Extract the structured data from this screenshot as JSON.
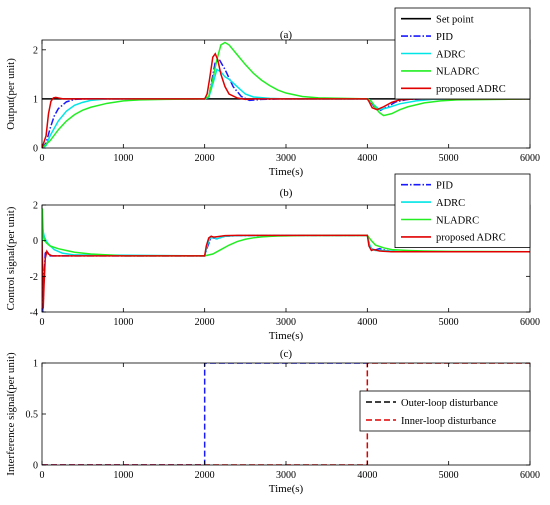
{
  "chart_data": [
    {
      "type": "line",
      "title": "(a)",
      "xlabel": "Time(s)",
      "ylabel": "Output(per unit)",
      "xlim": [
        0,
        6000
      ],
      "ylim": [
        0,
        2.2
      ],
      "xticks": [
        0,
        1000,
        2000,
        3000,
        4000,
        5000,
        6000
      ],
      "yticks": [
        0,
        1,
        2
      ],
      "legend_position": "top-right",
      "series": [
        {
          "name": "Set point",
          "color": "#000000",
          "dash": "solid",
          "x": [
            0,
            6000
          ],
          "y": [
            1,
            1
          ]
        },
        {
          "name": "PID",
          "color": "#1a1aff",
          "dash": "dashdot",
          "x": [
            0,
            50,
            100,
            150,
            200,
            300,
            400,
            500,
            2000,
            2050,
            2080,
            2130,
            2180,
            2250,
            2350,
            2450,
            2550,
            2700,
            2900,
            4000,
            4030,
            4080,
            4150,
            4250,
            4350,
            4500,
            4700,
            6000
          ],
          "y": [
            0,
            0.1,
            0.4,
            0.65,
            0.8,
            0.94,
            0.99,
            1.0,
            1.0,
            1.03,
            1.3,
            1.75,
            1.8,
            1.6,
            1.25,
            1.05,
            0.97,
            0.99,
            1.0,
            1.0,
            0.97,
            0.85,
            0.76,
            0.84,
            0.94,
            0.99,
            1.0,
            1.0
          ]
        },
        {
          "name": "ADRC",
          "color": "#00e5e5",
          "dash": "solid",
          "x": [
            0,
            50,
            100,
            200,
            300,
            400,
            500,
            600,
            800,
            2000,
            2050,
            2100,
            2150,
            2200,
            2250,
            2300,
            2400,
            2500,
            2600,
            2800,
            3000,
            4000,
            4030,
            4080,
            4150,
            4250,
            4400,
            4600,
            4800,
            6000
          ],
          "y": [
            0,
            0.05,
            0.25,
            0.55,
            0.75,
            0.87,
            0.93,
            0.97,
            1.0,
            1.0,
            1.03,
            1.3,
            1.6,
            1.55,
            1.45,
            1.4,
            1.25,
            1.1,
            1.04,
            1.01,
            1.0,
            1.0,
            0.98,
            0.88,
            0.78,
            0.82,
            0.9,
            0.96,
            0.99,
            1.0
          ]
        },
        {
          "name": "NLADRC",
          "color": "#22ee22",
          "dash": "solid",
          "x": [
            0,
            100,
            200,
            300,
            400,
            500,
            600,
            800,
            1000,
            1200,
            1500,
            2000,
            2050,
            2100,
            2150,
            2200,
            2250,
            2300,
            2400,
            2500,
            2600,
            2700,
            2800,
            2900,
            3000,
            3200,
            3400,
            4000,
            4050,
            4100,
            4150,
            4200,
            4300,
            4400,
            4500,
            4700,
            4900,
            5100,
            6000
          ],
          "y": [
            0,
            0.15,
            0.37,
            0.55,
            0.68,
            0.77,
            0.83,
            0.91,
            0.96,
            0.98,
            0.99,
            1.0,
            1.05,
            1.4,
            1.8,
            2.1,
            2.15,
            2.1,
            1.9,
            1.7,
            1.52,
            1.38,
            1.27,
            1.18,
            1.12,
            1.05,
            1.02,
            1.0,
            0.95,
            0.82,
            0.72,
            0.66,
            0.7,
            0.78,
            0.84,
            0.92,
            0.96,
            0.98,
            1.0
          ]
        },
        {
          "name": "proposed ADRC",
          "color": "#e00000",
          "dash": "solid",
          "x": [
            0,
            50,
            80,
            110,
            140,
            170,
            200,
            260,
            340,
            420,
            2000,
            2030,
            2060,
            2100,
            2130,
            2160,
            2200,
            2250,
            2300,
            2400,
            2500,
            2600,
            2800,
            4000,
            4020,
            4060,
            4120,
            4200,
            4300,
            4400,
            4600,
            6000
          ],
          "y": [
            0,
            0.25,
            0.7,
            0.95,
            1.02,
            1.03,
            1.02,
            1.0,
            1.0,
            1.0,
            1.0,
            1.1,
            1.4,
            1.85,
            1.92,
            1.8,
            1.5,
            1.25,
            1.1,
            1.02,
            0.99,
            1.0,
            1.0,
            1.0,
            0.95,
            0.82,
            0.78,
            0.84,
            0.93,
            0.98,
            1.0,
            1.0
          ]
        }
      ]
    },
    {
      "type": "line",
      "title": "(b)",
      "xlabel": "Time(s)",
      "ylabel": "Control signal(per unit)",
      "xlim": [
        0,
        6000
      ],
      "ylim": [
        -4,
        2
      ],
      "xticks": [
        0,
        1000,
        2000,
        3000,
        4000,
        5000,
        6000
      ],
      "yticks": [
        -4,
        -2,
        0,
        2
      ],
      "legend_position": "top-right",
      "series": [
        {
          "name": "PID",
          "color": "#1a1aff",
          "dash": "dashdot",
          "x": [
            0,
            10,
            15,
            25,
            40,
            60,
            100,
            300,
            2000,
            2030,
            2080,
            2150,
            2250,
            2400,
            3000,
            4000,
            4030,
            4080,
            4150,
            4300,
            4500,
            6000
          ],
          "y": [
            0,
            -4,
            -3.5,
            -2,
            -0.7,
            -0.6,
            -0.85,
            -0.85,
            -0.85,
            -0.4,
            0.2,
            0.1,
            0.25,
            0.28,
            0.3,
            0.3,
            -0.3,
            -0.55,
            -0.45,
            -0.62,
            -0.62,
            -0.62
          ]
        },
        {
          "name": "ADRC",
          "color": "#00e5e5",
          "dash": "solid",
          "x": [
            0,
            5,
            15,
            30,
            50,
            80,
            150,
            250,
            400,
            2000,
            2030,
            2060,
            2100,
            2150,
            2250,
            2400,
            3000,
            4000,
            4030,
            4060,
            4100,
            4200,
            4400,
            6000
          ],
          "y": [
            -0.3,
            0.8,
            0.5,
            0.2,
            0.0,
            -0.2,
            -0.5,
            -0.7,
            -0.8,
            -0.85,
            -0.3,
            0.1,
            0.2,
            0.1,
            0.25,
            0.28,
            0.3,
            0.3,
            -0.25,
            -0.5,
            -0.55,
            -0.55,
            -0.62,
            -0.62
          ]
        },
        {
          "name": "NLADRC",
          "color": "#22ee22",
          "dash": "solid",
          "x": [
            0,
            5,
            15,
            30,
            60,
            100,
            200,
            300,
            400,
            600,
            800,
            1000,
            2000,
            2100,
            2200,
            2300,
            2400,
            2500,
            2600,
            2700,
            2800,
            2900,
            3000,
            3200,
            4000,
            4050,
            4100,
            4200,
            4300,
            4500,
            4700,
            5000,
            6000
          ],
          "y": [
            -0.3,
            1.8,
            0.3,
            0.0,
            -0.15,
            -0.3,
            -0.45,
            -0.55,
            -0.65,
            -0.75,
            -0.8,
            -0.85,
            -0.85,
            -0.75,
            -0.5,
            -0.25,
            -0.05,
            0.08,
            0.16,
            0.21,
            0.24,
            0.26,
            0.27,
            0.29,
            0.3,
            0.0,
            -0.25,
            -0.4,
            -0.5,
            -0.55,
            -0.58,
            -0.6,
            -0.62
          ]
        },
        {
          "name": "proposed ADRC",
          "color": "#e00000",
          "dash": "solid",
          "x": [
            0,
            8,
            15,
            25,
            40,
            60,
            80,
            120,
            200,
            400,
            2000,
            2020,
            2050,
            2080,
            2110,
            2150,
            2250,
            2400,
            3000,
            4000,
            4020,
            4050,
            4080,
            4150,
            4300,
            6000
          ],
          "y": [
            0,
            -1.5,
            -3.8,
            -2.5,
            -1.0,
            -0.6,
            -0.75,
            -0.85,
            -0.85,
            -0.85,
            -0.85,
            -0.3,
            0.15,
            0.25,
            0.2,
            0.22,
            0.28,
            0.3,
            0.3,
            0.3,
            -0.3,
            -0.55,
            -0.5,
            -0.58,
            -0.62,
            -0.62
          ]
        }
      ]
    },
    {
      "type": "line",
      "title": "(c)",
      "xlabel": "Time(s)",
      "ylabel": "Interference signal(per unit)",
      "xlim": [
        0,
        6000
      ],
      "ylim": [
        0,
        1
      ],
      "xticks": [
        0,
        1000,
        2000,
        3000,
        4000,
        5000,
        6000
      ],
      "yticks": [
        0,
        0.5,
        1
      ],
      "legend_position": "right",
      "series": [
        {
          "name": "Outer-loop disturbance",
          "color": "#1a1aff",
          "legend_color": "#000000",
          "dash": "dashed",
          "x": [
            0,
            2000,
            2000,
            4000
          ],
          "y": [
            0,
            0,
            1,
            1
          ]
        },
        {
          "name": "Inner-loop disturbance",
          "color": "#e00000",
          "dash": "dashed",
          "x": [
            0,
            4000,
            4000,
            6000
          ],
          "y": [
            0,
            0,
            1,
            1
          ]
        }
      ]
    }
  ]
}
